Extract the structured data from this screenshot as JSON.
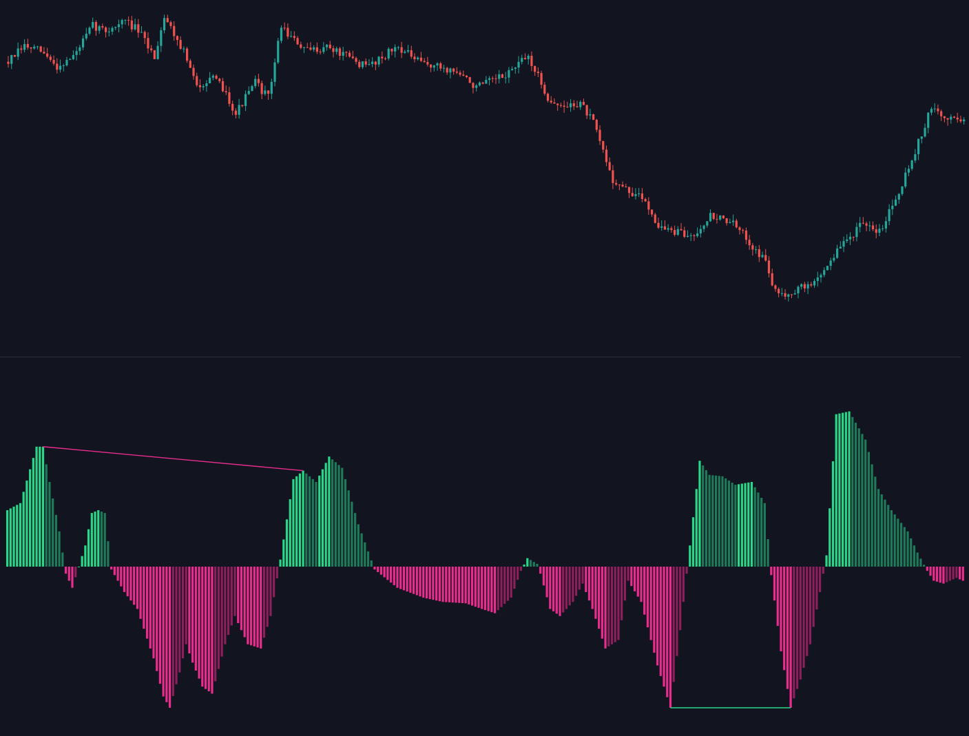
{
  "colors": {
    "background": "#121520",
    "separator": "#2a2e39",
    "candle_up": "#26a69a",
    "candle_down": "#ef5350",
    "hist_pos_strong": "#2ad688",
    "hist_pos_weak": "#1e7a58",
    "hist_neg_strong": "#ea2c8e",
    "hist_neg_weak": "#8c1f5c",
    "divergence_bearish": "#ea2c8e",
    "divergence_bullish": "#2ad688"
  },
  "chart_data": [
    {
      "type": "candlestick",
      "title": "",
      "grid": false,
      "legend": "none",
      "ylim": [
        40,
        105
      ],
      "anchors": [
        [
          0,
          95
        ],
        [
          5,
          98
        ],
        [
          10,
          97
        ],
        [
          15,
          94
        ],
        [
          20,
          96
        ],
        [
          26,
          102
        ],
        [
          30,
          101
        ],
        [
          36,
          103
        ],
        [
          40,
          101
        ],
        [
          45,
          96
        ],
        [
          48,
          104
        ],
        [
          54,
          97
        ],
        [
          58,
          90
        ],
        [
          62,
          92
        ],
        [
          66,
          90
        ],
        [
          70,
          85
        ],
        [
          76,
          91
        ],
        [
          80,
          88
        ],
        [
          84,
          102
        ],
        [
          88,
          99
        ],
        [
          92,
          97
        ],
        [
          98,
          98
        ],
        [
          104,
          96
        ],
        [
          110,
          94
        ],
        [
          120,
          98
        ],
        [
          126,
          95
        ],
        [
          132,
          94
        ],
        [
          138,
          93
        ],
        [
          144,
          90
        ],
        [
          152,
          92
        ],
        [
          160,
          96
        ],
        [
          166,
          88
        ],
        [
          170,
          86
        ],
        [
          176,
          87
        ],
        [
          180,
          83
        ],
        [
          186,
          72
        ],
        [
          190,
          70
        ],
        [
          196,
          68
        ],
        [
          200,
          63
        ],
        [
          204,
          62
        ],
        [
          210,
          61
        ],
        [
          216,
          65
        ],
        [
          222,
          64
        ],
        [
          228,
          60
        ],
        [
          233,
          56
        ],
        [
          236,
          50
        ],
        [
          240,
          50
        ],
        [
          248,
          52
        ],
        [
          256,
          59
        ],
        [
          262,
          63
        ],
        [
          268,
          62
        ],
        [
          274,
          70
        ],
        [
          278,
          76
        ],
        [
          284,
          86
        ],
        [
          288,
          84
        ],
        [
          294,
          84
        ]
      ],
      "count": 295
    },
    {
      "type": "histogram",
      "title": "",
      "grid": false,
      "legend": "none",
      "ylim": [
        -100,
        120
      ],
      "anchors": [
        [
          0,
          40
        ],
        [
          4,
          45
        ],
        [
          9,
          85
        ],
        [
          11,
          85
        ],
        [
          13,
          60
        ],
        [
          16,
          25
        ],
        [
          18,
          -5
        ],
        [
          20,
          -15
        ],
        [
          22,
          0
        ],
        [
          24,
          15
        ],
        [
          26,
          38
        ],
        [
          28,
          40
        ],
        [
          30,
          38
        ],
        [
          32,
          -2
        ],
        [
          36,
          -18
        ],
        [
          40,
          -30
        ],
        [
          45,
          -65
        ],
        [
          48,
          -92
        ],
        [
          50,
          -100
        ],
        [
          53,
          -75
        ],
        [
          55,
          -55
        ],
        [
          57,
          -68
        ],
        [
          60,
          -85
        ],
        [
          63,
          -90
        ],
        [
          67,
          -55
        ],
        [
          70,
          -35
        ],
        [
          74,
          -55
        ],
        [
          78,
          -58
        ],
        [
          81,
          -35
        ],
        [
          84,
          5
        ],
        [
          88,
          62
        ],
        [
          91,
          68
        ],
        [
          95,
          60
        ],
        [
          99,
          78
        ],
        [
          103,
          70
        ],
        [
          108,
          30
        ],
        [
          113,
          -2
        ],
        [
          120,
          -15
        ],
        [
          128,
          -22
        ],
        [
          134,
          -25
        ],
        [
          141,
          -26
        ],
        [
          146,
          -30
        ],
        [
          150,
          -33
        ],
        [
          155,
          -22
        ],
        [
          158,
          -3
        ],
        [
          160,
          6
        ],
        [
          163,
          2
        ],
        [
          164,
          -5
        ],
        [
          167,
          -30
        ],
        [
          170,
          -35
        ],
        [
          174,
          -25
        ],
        [
          177,
          -12
        ],
        [
          180,
          -30
        ],
        [
          184,
          -58
        ],
        [
          188,
          -52
        ],
        [
          191,
          -10
        ],
        [
          195,
          -25
        ],
        [
          200,
          -70
        ],
        [
          204,
          -100
        ],
        [
          207,
          -45
        ],
        [
          210,
          15
        ],
        [
          213,
          75
        ],
        [
          216,
          65
        ],
        [
          220,
          64
        ],
        [
          224,
          58
        ],
        [
          229,
          60
        ],
        [
          233,
          45
        ],
        [
          235,
          -6
        ],
        [
          238,
          -60
        ],
        [
          241,
          -100
        ],
        [
          244,
          -80
        ],
        [
          247,
          -55
        ],
        [
          250,
          -18
        ],
        [
          252,
          8
        ],
        [
          255,
          108
        ],
        [
          259,
          110
        ],
        [
          264,
          90
        ],
        [
          268,
          55
        ],
        [
          272,
          40
        ],
        [
          277,
          25
        ],
        [
          280,
          10
        ],
        [
          283,
          -3
        ],
        [
          285,
          -10
        ],
        [
          288,
          -12
        ],
        [
          292,
          -8
        ],
        [
          294,
          -10
        ]
      ],
      "count": 295,
      "divergences": [
        {
          "kind": "bearish",
          "from_index": 11,
          "from_value": 85,
          "to_index": 91,
          "to_value": 68
        },
        {
          "kind": "bullish",
          "from_index": 204,
          "from_value": -100,
          "to_index": 241,
          "to_value": -100
        }
      ]
    }
  ]
}
